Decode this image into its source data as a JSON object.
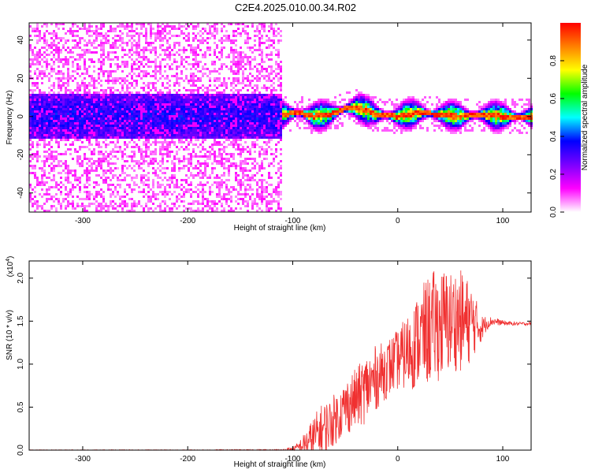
{
  "title": "C2E4.2025.010.00.34.R02",
  "chart_data": [
    {
      "type": "heatmap",
      "xlabel": "Height of straight line (km)",
      "ylabel": "Frequency (Hz)",
      "xlim": [
        -351,
        127
      ],
      "ylim": [
        -50,
        49
      ],
      "x_ticks": [
        -300,
        -200,
        -100,
        0,
        100
      ],
      "x_tick_labels": [
        "-300",
        "-200",
        "-100",
        "0",
        "100"
      ],
      "y_ticks": [
        -40,
        -20,
        0,
        20,
        40
      ],
      "y_tick_labels": [
        "-40",
        "-20",
        "0",
        "20",
        "40"
      ],
      "colorbar": {
        "label": "Normalized spectral amplitude",
        "range": [
          0,
          1
        ],
        "ticks": [
          0.0,
          0.2,
          0.4,
          0.6,
          0.8
        ],
        "tick_labels": [
          "0.0",
          "0.2",
          "0.4",
          "0.6",
          "0.8"
        ],
        "colormap": [
          "#ffffff",
          "#ff00ff",
          "#7b00ff",
          "#0000ff",
          "#00ffff",
          "#00ff00",
          "#ffff00",
          "#ff8000",
          "#ff0000"
        ]
      },
      "ridge": {
        "x": [
          -110,
          -95,
          -80,
          -65,
          -50,
          -40,
          -30,
          -20,
          0,
          20,
          40,
          60,
          80,
          100,
          127
        ],
        "y": [
          1,
          2,
          0,
          1,
          4,
          5,
          3,
          1,
          0,
          2,
          1,
          0,
          1,
          0,
          0
        ]
      },
      "grid": false
    },
    {
      "type": "line",
      "xlabel": "Height of straight line (km)",
      "ylabel": "SNR (10 * v/v)",
      "y_multiplier_label": "(x10",
      "y_multiplier_exp": "4",
      "xlim": [
        -351,
        127
      ],
      "ylim": [
        0,
        2.2
      ],
      "x_ticks": [
        -300,
        -200,
        -100,
        0,
        100
      ],
      "x_tick_labels": [
        "-300",
        "-200",
        "-100",
        "0",
        "100"
      ],
      "y_ticks": [
        0.0,
        0.5,
        1.0,
        1.5,
        2.0
      ],
      "y_tick_labels": [
        "0.0",
        "0.5",
        "1.0",
        "1.5",
        "2.0"
      ],
      "color": "#f03030",
      "series": [
        {
          "x": [
            -351,
            -300,
            -200,
            -110,
            -100,
            -95,
            -90,
            -85,
            -80,
            -75,
            -70,
            -65,
            -60,
            -55,
            -50,
            -45,
            -40,
            -35,
            -30,
            -25,
            -20,
            -15,
            -10,
            -5,
            0,
            5,
            10,
            15,
            20,
            25,
            30,
            35,
            40,
            45,
            50,
            55,
            60,
            65,
            70,
            75,
            80,
            85,
            90,
            100,
            110,
            120,
            127
          ],
          "y": [
            0.0,
            0.0,
            0.0,
            0.0,
            0.01,
            0.03,
            0.06,
            0.1,
            0.15,
            0.2,
            0.25,
            0.3,
            0.36,
            0.42,
            0.5,
            0.55,
            0.6,
            0.65,
            0.72,
            0.78,
            0.85,
            0.9,
            0.95,
            1.0,
            1.05,
            1.1,
            1.15,
            1.2,
            1.3,
            1.35,
            1.4,
            1.45,
            1.45,
            1.48,
            1.5,
            1.52,
            1.5,
            1.48,
            1.5,
            1.45,
            1.42,
            1.48,
            1.5,
            1.48,
            1.47,
            1.47,
            1.47
          ],
          "spread": [
            0.005,
            0.005,
            0.005,
            0.01,
            0.03,
            0.06,
            0.12,
            0.18,
            0.25,
            0.3,
            0.32,
            0.3,
            0.3,
            0.3,
            0.32,
            0.35,
            0.35,
            0.38,
            0.4,
            0.4,
            0.38,
            0.35,
            0.35,
            0.35,
            0.35,
            0.4,
            0.45,
            0.5,
            0.55,
            0.6,
            0.65,
            0.65,
            0.65,
            0.65,
            0.6,
            0.6,
            0.6,
            0.55,
            0.45,
            0.3,
            0.15,
            0.08,
            0.05,
            0.03,
            0.02,
            0.02,
            0.02
          ]
        }
      ],
      "grid": false
    }
  ]
}
